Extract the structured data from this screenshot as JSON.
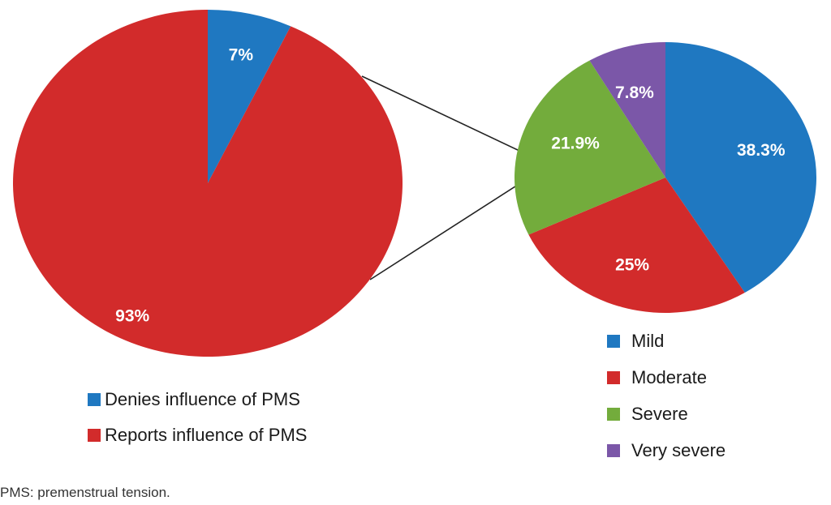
{
  "chart_data": [
    {
      "type": "pie",
      "slices": [
        {
          "label": "Denies influence of PMS",
          "value": 7,
          "display": "7%",
          "color": "#1f78c1"
        },
        {
          "label": "Reports influence of PMS",
          "value": 93,
          "display": "93%",
          "color": "#d22b2b"
        }
      ],
      "legend": [
        "Denies influence of PMS",
        "Reports influence of PMS"
      ],
      "legend_position": "bottom"
    },
    {
      "type": "pie",
      "slices": [
        {
          "label": "Mild",
          "value": 38.3,
          "display": "38.3%",
          "color": "#1f78c1"
        },
        {
          "label": "Moderate",
          "value": 25,
          "display": "25%",
          "color": "#d22b2b"
        },
        {
          "label": "Severe",
          "value": 21.9,
          "display": "21.9%",
          "color": "#73ac3c"
        },
        {
          "label": "Very severe",
          "value": 7.8,
          "display": "7.8%",
          "color": "#7b57a8"
        }
      ],
      "legend": [
        "Mild",
        "Moderate",
        "Severe",
        "Very severe"
      ],
      "legend_position": "bottom"
    }
  ],
  "footnote": "PMS: premenstrual tension."
}
